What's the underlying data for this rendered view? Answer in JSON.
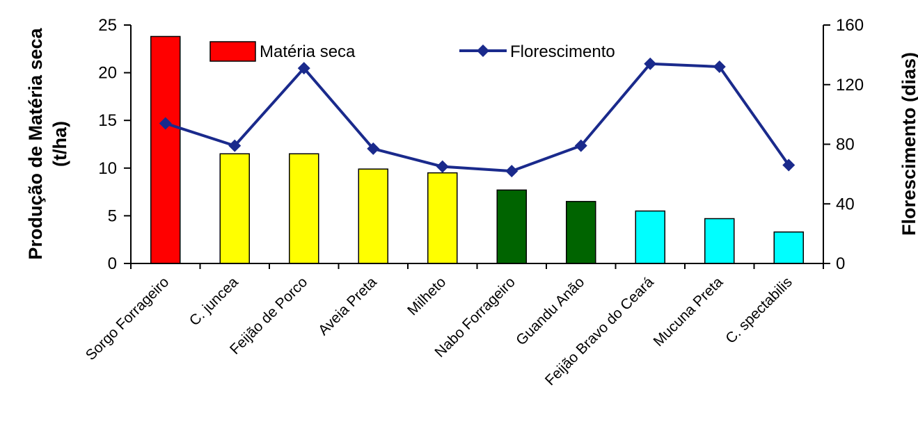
{
  "chart_data": {
    "type": "bar",
    "categories": [
      "Sorgo Forrageiro",
      "C. juncea",
      "Feijão de Porco",
      "Aveia Preta",
      "Milheto",
      "Nabo Forrageiro",
      "Guandu Anão",
      "Feijão Bravo do Ceará",
      "Mucuna Preta",
      "C. spectabilis"
    ],
    "series": [
      {
        "name": "Matéria seca",
        "type": "bar",
        "axis": "left",
        "values": [
          23.8,
          11.5,
          11.5,
          9.9,
          9.5,
          7.7,
          6.5,
          5.5,
          4.7,
          3.3
        ],
        "colors": [
          "#ff0000",
          "#ffff00",
          "#ffff00",
          "#ffff00",
          "#ffff00",
          "#006400",
          "#006400",
          "#00ffff",
          "#00ffff",
          "#00ffff"
        ]
      },
      {
        "name": "Florescimento",
        "type": "line",
        "axis": "right",
        "values": [
          94,
          79,
          131,
          77,
          65,
          62,
          79,
          134,
          132,
          66
        ],
        "color": "#1a2a8c"
      }
    ],
    "ylabel": "Produção de Matéria seca (t/ha)",
    "ylabel_line1": "Produção de Matéria seca",
    "ylabel_line2": "(t/ha)",
    "y2label": "Florescimento (dias)",
    "ylim": [
      0,
      25
    ],
    "y2lim": [
      0,
      160
    ],
    "yticks": [
      0,
      5,
      10,
      15,
      20,
      25
    ],
    "y2ticks": [
      0,
      40,
      80,
      120,
      160
    ],
    "legend": "top-left-inside",
    "grid": false
  }
}
